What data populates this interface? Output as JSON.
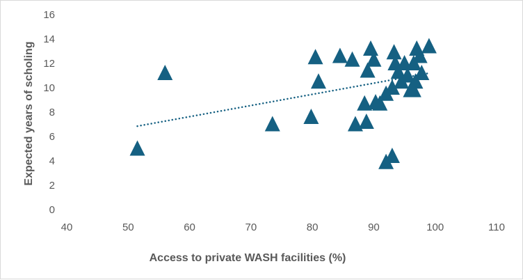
{
  "chart_data": {
    "type": "scatter",
    "title": "",
    "xlabel": "Access to private WASH facilities (%)",
    "ylabel": "Expected years of scholing",
    "xlim": [
      40,
      110
    ],
    "ylim": [
      0,
      16
    ],
    "xticks": [
      40,
      50,
      60,
      70,
      80,
      90,
      100,
      110
    ],
    "yticks": [
      0,
      2,
      4,
      6,
      8,
      10,
      12,
      14,
      16
    ],
    "grid": false,
    "legend": "none",
    "marker": "triangle",
    "color": "#156082",
    "points": [
      [
        51.5,
        5.0
      ],
      [
        56,
        11.2
      ],
      [
        73.5,
        7.0
      ],
      [
        79.8,
        7.6
      ],
      [
        80.5,
        12.5
      ],
      [
        81,
        10.5
      ],
      [
        84.5,
        12.6
      ],
      [
        86.5,
        12.3
      ],
      [
        87,
        7.0
      ],
      [
        88.5,
        8.7
      ],
      [
        88.8,
        7.2
      ],
      [
        89,
        11.4
      ],
      [
        89.5,
        13.2
      ],
      [
        90,
        12.3
      ],
      [
        90.3,
        8.8
      ],
      [
        91,
        8.7
      ],
      [
        92,
        9.5
      ],
      [
        92,
        3.9
      ],
      [
        93,
        4.4
      ],
      [
        93,
        10.0
      ],
      [
        93.3,
        12.9
      ],
      [
        93.5,
        12.0
      ],
      [
        94,
        11.3
      ],
      [
        94.5,
        10.5
      ],
      [
        95,
        12.0
      ],
      [
        95.5,
        11.0
      ],
      [
        96,
        9.8
      ],
      [
        96.5,
        12.0
      ],
      [
        96.8,
        10.5
      ],
      [
        97,
        13.2
      ],
      [
        97.5,
        12.6
      ],
      [
        97.8,
        11.2
      ],
      [
        99,
        13.4
      ],
      [
        96.5,
        9.8
      ]
    ],
    "trendline": {
      "type": "linear",
      "style": "dotted",
      "from": [
        51.5,
        6.85
      ],
      "to": [
        99,
        11.2
      ]
    }
  }
}
